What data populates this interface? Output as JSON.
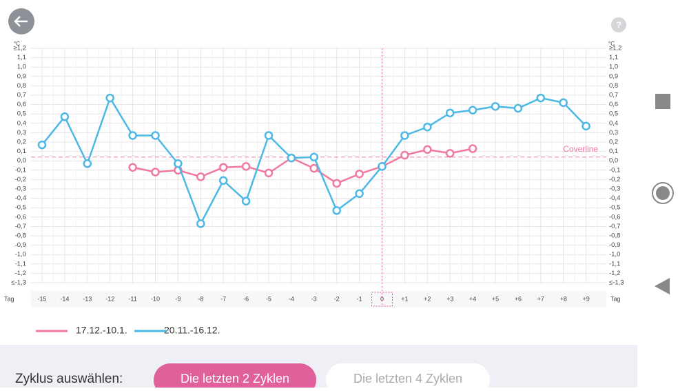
{
  "chart_data": {
    "type": "line",
    "y_unit": "°C",
    "x_label": "Tag",
    "categories": [
      "-15",
      "-14",
      "-13",
      "-12",
      "-11",
      "-10",
      "-9",
      "-8",
      "-7",
      "-6",
      "-5",
      "-4",
      "-3",
      "-2",
      "-1",
      "0",
      "+1",
      "+2",
      "+3",
      "+4",
      "+5",
      "+6",
      "+7",
      "+8",
      "+9"
    ],
    "series": [
      {
        "name": "17.12.-10.1.",
        "color": "#f0799e",
        "values": [
          null,
          null,
          null,
          null,
          -0.07,
          -0.12,
          -0.1,
          -0.17,
          -0.07,
          -0.06,
          -0.13,
          0.03,
          -0.08,
          -0.24,
          -0.14,
          -0.06,
          0.06,
          0.12,
          0.08,
          0.13,
          null,
          null,
          null,
          null,
          null
        ]
      },
      {
        "name": "20.11.-16.12.",
        "color": "#4cb8e6",
        "values": [
          0.17,
          0.47,
          -0.03,
          0.67,
          0.27,
          0.27,
          -0.03,
          -0.67,
          -0.21,
          -0.43,
          0.27,
          0.03,
          0.04,
          -0.53,
          -0.35,
          -0.06,
          0.27,
          0.36,
          0.51,
          0.54,
          0.58,
          0.56,
          0.67,
          0.62,
          0.37
        ]
      }
    ],
    "ylim": [
      -1.3,
      1.2
    ],
    "yticks": [
      {
        "value": 1.2,
        "label": "≥1,2"
      },
      {
        "value": 1.1,
        "label": "1,1"
      },
      {
        "value": 1.0,
        "label": "1,0"
      },
      {
        "value": 0.9,
        "label": "0,9"
      },
      {
        "value": 0.8,
        "label": "0,8"
      },
      {
        "value": 0.7,
        "label": "0,7"
      },
      {
        "value": 0.6,
        "label": "0,6"
      },
      {
        "value": 0.5,
        "label": "0,5"
      },
      {
        "value": 0.4,
        "label": "0,4"
      },
      {
        "value": 0.3,
        "label": "0,3"
      },
      {
        "value": 0.2,
        "label": "0,2"
      },
      {
        "value": 0.1,
        "label": "0,1"
      },
      {
        "value": 0,
        "label": "0,0"
      },
      {
        "value": -0.1,
        "label": "-0,1"
      },
      {
        "value": -0.2,
        "label": "-0,2"
      },
      {
        "value": -0.3,
        "label": "-0,3"
      },
      {
        "value": -0.4,
        "label": "-0,4"
      },
      {
        "value": -0.5,
        "label": "-0,5"
      },
      {
        "value": -0.6,
        "label": "-0,6"
      },
      {
        "value": -0.7,
        "label": "-0,7"
      },
      {
        "value": -0.8,
        "label": "-0,8"
      },
      {
        "value": -0.9,
        "label": "-0,9"
      },
      {
        "value": -1.0,
        "label": "-1,0"
      },
      {
        "value": -1.1,
        "label": "-1,1"
      },
      {
        "value": -1.2,
        "label": "-1,2"
      },
      {
        "value": -1.3,
        "label": "≤-1,3"
      }
    ],
    "coverline": {
      "value": 0.04,
      "label": "Coverline"
    },
    "grid": true
  },
  "ui": {
    "selector_label": "Zyklus auswählen:",
    "buttons": [
      "Die letzten 2 Zyklen",
      "Die letzten 4 Zyklen"
    ]
  }
}
